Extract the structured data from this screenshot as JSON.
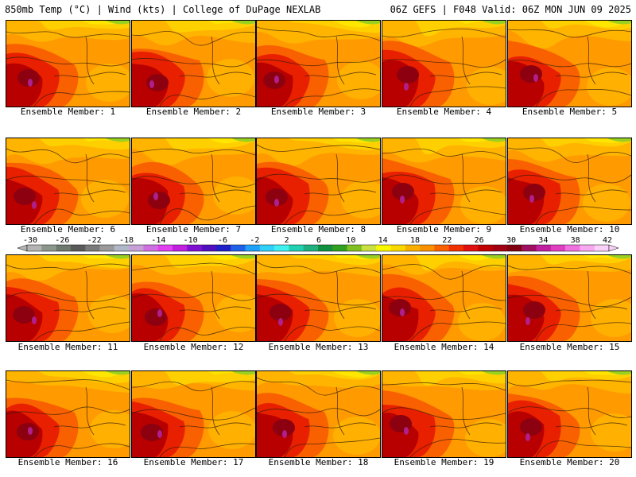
{
  "header": {
    "left_title": "850mb Temp (°C) | Wind (kts) | College of DuPage NEXLAB",
    "right_title": "06Z GEFS | F048 Valid: 06Z MON JUN 09 2025"
  },
  "members": [
    {
      "label": "Ensemble Member: 1"
    },
    {
      "label": "Ensemble Member: 2"
    },
    {
      "label": "Ensemble Member: 3"
    },
    {
      "label": "Ensemble Member: 4"
    },
    {
      "label": "Ensemble Member: 5"
    },
    {
      "label": "Ensemble Member: 6"
    },
    {
      "label": "Ensemble Member: 7"
    },
    {
      "label": "Ensemble Member: 8"
    },
    {
      "label": "Ensemble Member: 9"
    },
    {
      "label": "Ensemble Member: 10"
    },
    {
      "label": "Ensemble Member: 11"
    },
    {
      "label": "Ensemble Member: 12"
    },
    {
      "label": "Ensemble Member: 13"
    },
    {
      "label": "Ensemble Member: 14"
    },
    {
      "label": "Ensemble Member: 15"
    },
    {
      "label": "Ensemble Member: 16"
    },
    {
      "label": "Ensemble Member: 17"
    },
    {
      "label": "Ensemble Member: 18"
    },
    {
      "label": "Ensemble Member: 19"
    },
    {
      "label": "Ensemble Member: 20"
    }
  ],
  "colorbar": {
    "tick_labels": [
      "-30",
      "-26",
      "-22",
      "-18",
      "-14",
      "-10",
      "-6",
      "-2",
      "2",
      "6",
      "10",
      "14",
      "18",
      "22",
      "26",
      "30",
      "34",
      "38",
      "42"
    ],
    "colors": [
      "#b4b4b4",
      "#8c968c",
      "#6e7a6e",
      "#5a5a5a",
      "#7a7a7a",
      "#9a9a9a",
      "#b0b8c8",
      "#c8a0d8",
      "#d070e0",
      "#e040f0",
      "#c020e0",
      "#8010d0",
      "#5010c0",
      "#2020c8",
      "#2060e8",
      "#20a0f8",
      "#30d0f8",
      "#40f0f0",
      "#20d0b0",
      "#20b080",
      "#109040",
      "#30a020",
      "#80c020",
      "#c8e040",
      "#f8f800",
      "#f8d800",
      "#f8b000",
      "#f89000",
      "#f86000",
      "#f03000",
      "#e01010",
      "#c00000",
      "#a00010",
      "#800010",
      "#a01060",
      "#c020a0",
      "#e040c0",
      "#f070e0",
      "#f8a8f0",
      "#f8d0f8"
    ]
  },
  "palette": {
    "orange": "#ff9a00",
    "light_orange": "#ffb400",
    "yellow_orange": "#ffd000",
    "yellow": "#ffe600",
    "red_orange": "#f86000",
    "red": "#e82000",
    "dark_red": "#b80000",
    "maroon": "#8c0010",
    "magenta": "#b0208c",
    "green": "#9ad020"
  }
}
